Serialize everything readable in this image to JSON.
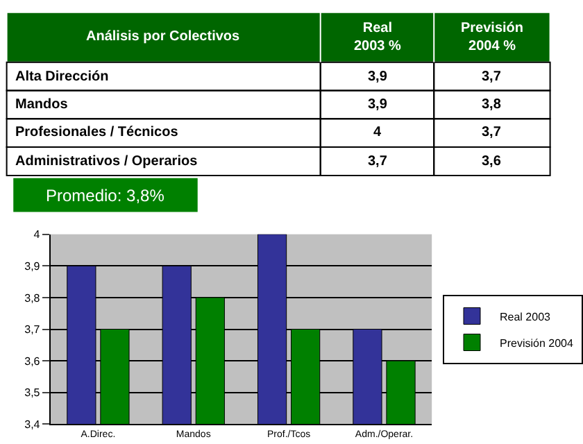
{
  "chart_data": {
    "type": "bar",
    "categories": [
      "A.Direc.",
      "Mandos",
      "Prof./Tcos",
      "Adm./Operar."
    ],
    "series": [
      {
        "name": "Real 2003",
        "color": "#333399",
        "values": [
          3.9,
          3.9,
          4,
          3.7
        ]
      },
      {
        "name": "Previsión 2004",
        "color": "#008000",
        "values": [
          3.7,
          3.8,
          3.7,
          3.6
        ]
      }
    ],
    "ylim": [
      3.4,
      4
    ],
    "yticks": [
      {
        "value": 3.4,
        "label": "3,4"
      },
      {
        "value": 3.5,
        "label": "3,5"
      },
      {
        "value": 3.6,
        "label": "3,6"
      },
      {
        "value": 3.7,
        "label": "3,7"
      },
      {
        "value": 3.8,
        "label": "3,8"
      },
      {
        "value": 3.9,
        "label": "3,9"
      },
      4
    ],
    "grid": "y",
    "legend": "right",
    "annotations": [
      "Análisis por Colectivos",
      "Real\n2003 %",
      "Previsión\n2004 %",
      "Alta Dirección",
      "3,9",
      "3,7",
      "Mandos",
      "3,9",
      "3,8",
      "Profesionales / Técnicos",
      "4",
      "3,7",
      "Administrativos / Operarios",
      "3,7",
      "3,6",
      "Promedio: 3,8%"
    ]
  }
}
